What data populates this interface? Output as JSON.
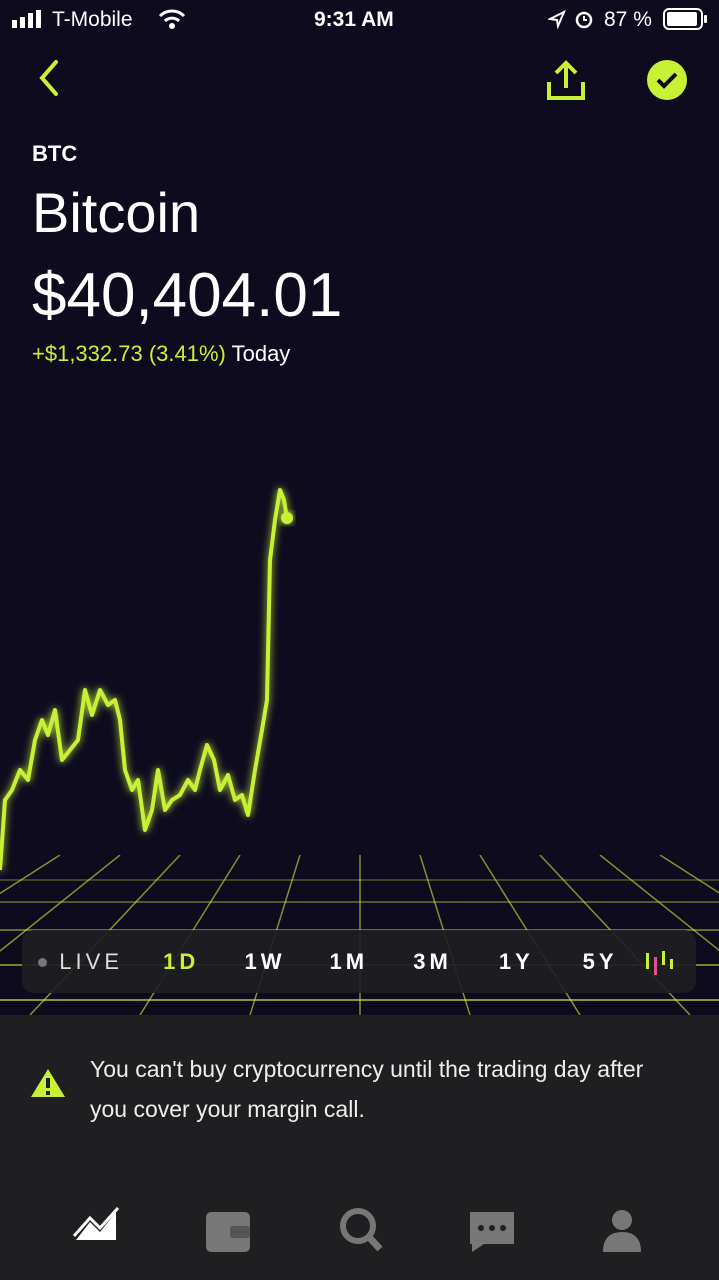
{
  "status_bar": {
    "carrier": "T-Mobile",
    "time": "9:31 AM",
    "battery": "87 %"
  },
  "asset": {
    "symbol": "BTC",
    "name": "Bitcoin",
    "price": "$40,404.01",
    "change": "+$1,332.73 (3.41%)",
    "change_period": "Today"
  },
  "ranges": [
    "LIVE",
    "1D",
    "1W",
    "1M",
    "3M",
    "1Y",
    "5Y"
  ],
  "notice": "You can't buy cryptocurrency until the trading day after you cover your margin call."
}
